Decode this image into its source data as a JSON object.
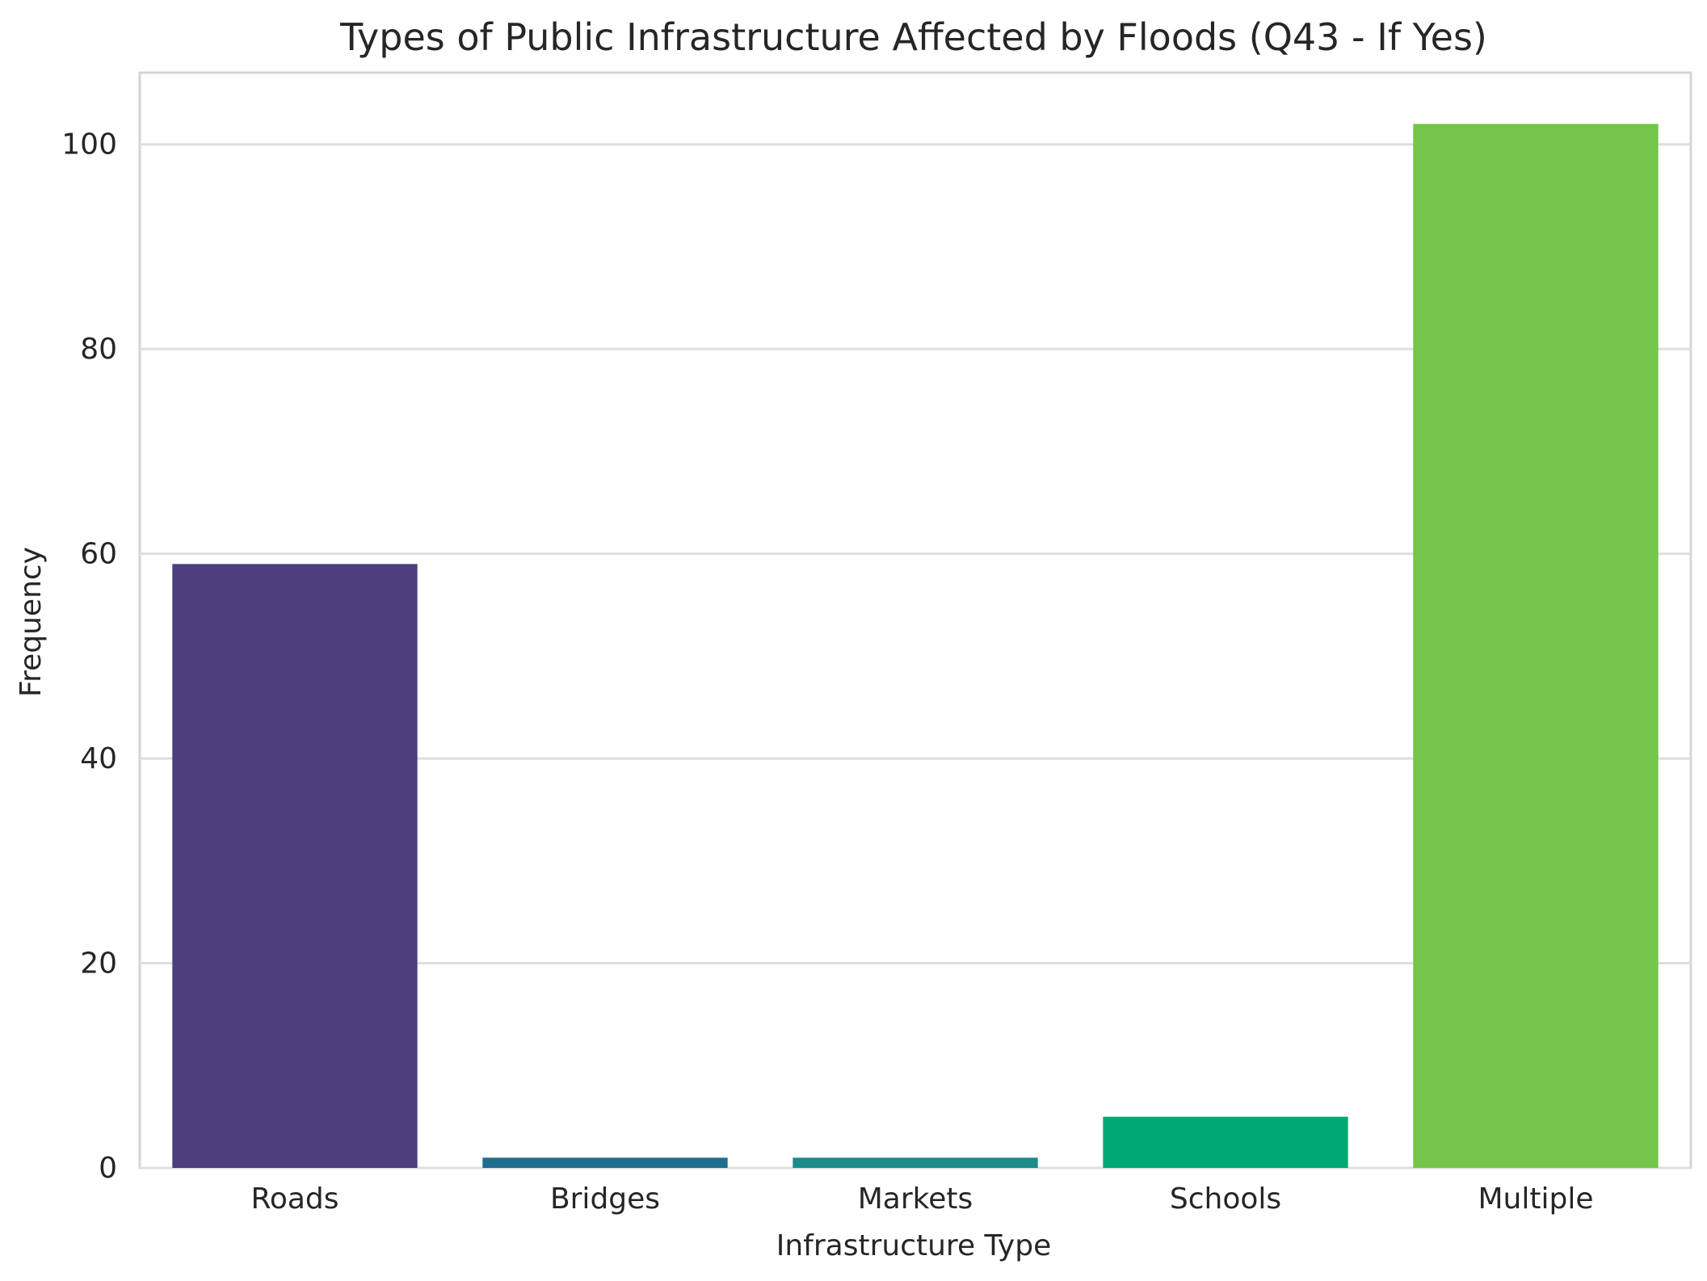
{
  "chart_data": {
    "type": "bar",
    "title": "Types of Public Infrastructure Affected by Floods (Q43 - If Yes)",
    "xlabel": "Infrastructure Type",
    "ylabel": "Frequency",
    "categories": [
      "Roads",
      "Bridges",
      "Markets",
      "Schools",
      "Multiple"
    ],
    "values": [
      59,
      1,
      1,
      5,
      102
    ],
    "colors": [
      "#4d3f7e",
      "#1f6e8d",
      "#1b8c8a",
      "#00a874",
      "#74c54a"
    ],
    "ylim": [
      0,
      107
    ],
    "yticks": [
      0,
      20,
      40,
      60,
      80,
      100
    ],
    "grid": true,
    "legend": "none"
  }
}
